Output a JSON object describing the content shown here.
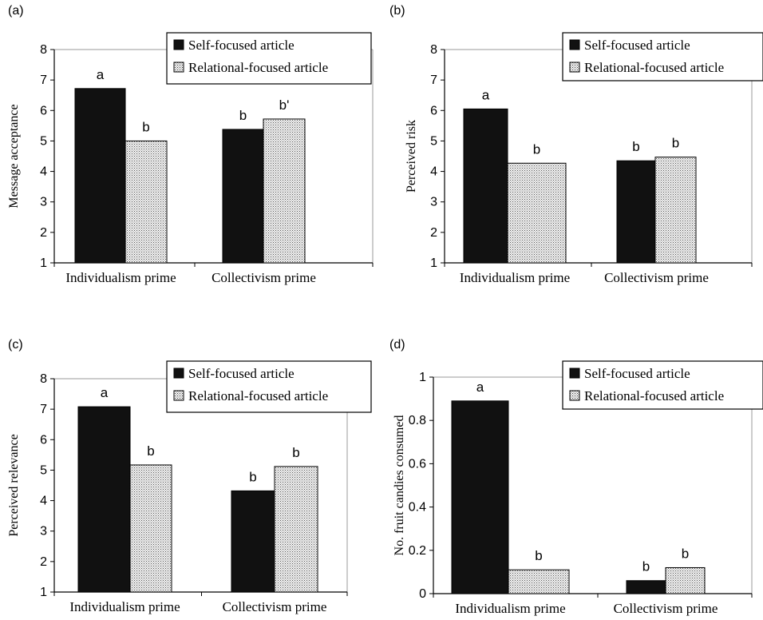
{
  "colors": {
    "self_focused": "#111111",
    "relational_focused": "dotted-light-gray"
  },
  "chart_data": [
    {
      "panel": "(a)",
      "type": "bar",
      "categories": [
        "Individualism prime",
        "Collectivism prime"
      ],
      "ylabel": "Message acceptance",
      "xlabel": "",
      "ylim": [
        1,
        8
      ],
      "yticks": [
        "1",
        "2",
        "3",
        "4",
        "5",
        "6",
        "7",
        "8"
      ],
      "legend": "top-right",
      "series": [
        {
          "name": "Self-focused article",
          "values": [
            6.72,
            5.38
          ],
          "labels": [
            "a",
            "b"
          ]
        },
        {
          "name": "Relational-focused article",
          "values": [
            5.0,
            5.72
          ],
          "labels": [
            "b",
            "b'"
          ]
        }
      ]
    },
    {
      "panel": "(b)",
      "type": "bar",
      "categories": [
        "Individualism prime",
        "Collectivism prime"
      ],
      "ylabel": "Perceived risk",
      "xlabel": "",
      "ylim": [
        1,
        8
      ],
      "yticks": [
        "1",
        "2",
        "3",
        "4",
        "5",
        "6",
        "7",
        "8"
      ],
      "legend": "top-right",
      "series": [
        {
          "name": "Self-focused article",
          "values": [
            6.05,
            4.35
          ],
          "labels": [
            "a",
            "b"
          ]
        },
        {
          "name": "Relational-focused article",
          "values": [
            4.27,
            4.47
          ],
          "labels": [
            "b",
            "b"
          ]
        }
      ]
    },
    {
      "panel": "(c)",
      "type": "bar",
      "categories": [
        "Individualism prime",
        "Collectivism prime"
      ],
      "ylabel": "Perceived relevance",
      "xlabel": "",
      "ylim": [
        1,
        8
      ],
      "yticks": [
        "1",
        "2",
        "3",
        "4",
        "5",
        "6",
        "7",
        "8"
      ],
      "legend": "top-right",
      "series": [
        {
          "name": "Self-focused article",
          "values": [
            7.08,
            4.32
          ],
          "labels": [
            "a",
            "b"
          ]
        },
        {
          "name": "Relational-focused article",
          "values": [
            5.17,
            5.12
          ],
          "labels": [
            "b",
            "b"
          ]
        }
      ]
    },
    {
      "panel": "(d)",
      "type": "bar",
      "categories": [
        "Individualism prime",
        "Collectivism prime"
      ],
      "ylabel": "No. fruit candies consumed",
      "xlabel": "",
      "ylim": [
        0,
        1
      ],
      "yticks": [
        "0",
        "0.2",
        "0.4",
        "0.6",
        "0.8",
        "1"
      ],
      "legend": "top-right",
      "series": [
        {
          "name": "Self-focused article",
          "values": [
            0.89,
            0.06
          ],
          "labels": [
            "a",
            "b"
          ]
        },
        {
          "name": "Relational-focused article",
          "values": [
            0.11,
            0.12
          ],
          "labels": [
            "b",
            "b"
          ]
        }
      ]
    }
  ]
}
